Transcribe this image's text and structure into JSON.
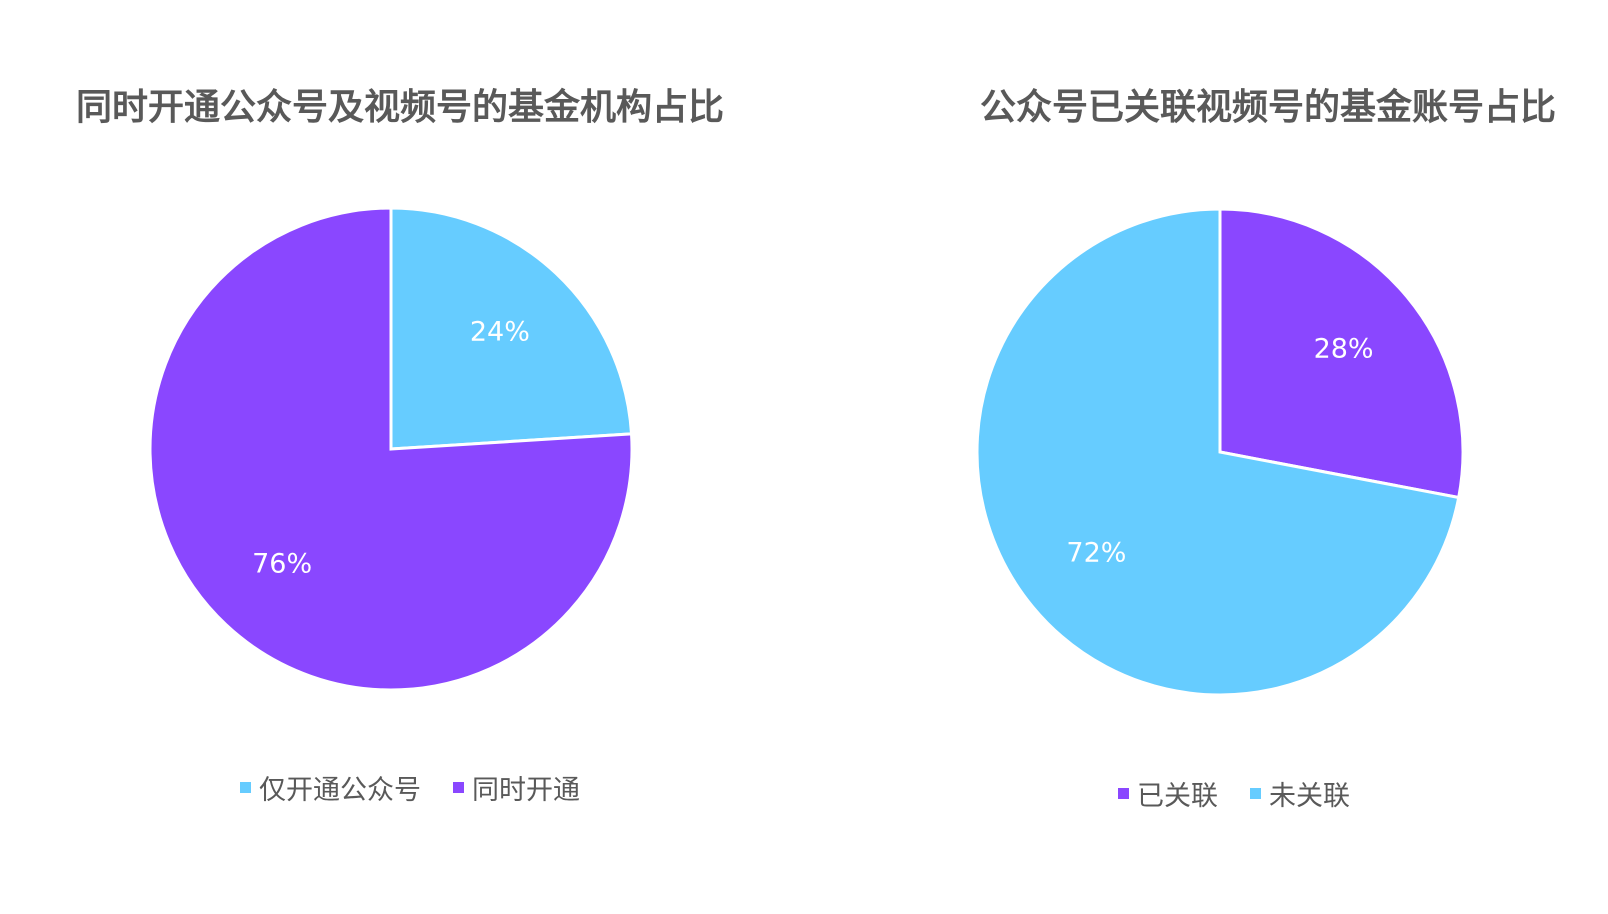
{
  "colors": {
    "light_blue": "#66CCFF",
    "purple": "#8A47FF",
    "title_text": "#595959",
    "legend_text": "#595959"
  },
  "chart_data": [
    {
      "type": "pie",
      "title": "同时开通公众号及视频号的基金机构占比",
      "categories": [
        "仅开通公众号",
        "同时开通"
      ],
      "values": [
        24,
        76
      ],
      "data_labels": [
        "24%",
        "76%"
      ],
      "colors": [
        "#66CCFF",
        "#8A47FF"
      ],
      "legend": [
        "仅开通公众号",
        "同时开通"
      ],
      "legend_position": "bottom"
    },
    {
      "type": "pie",
      "title": "公众号已关联视频号的基金账号占比",
      "categories": [
        "已关联",
        "未关联"
      ],
      "values": [
        28,
        72
      ],
      "data_labels": [
        "28%",
        "72%"
      ],
      "colors": [
        "#8A47FF",
        "#66CCFF"
      ],
      "legend": [
        "已关联",
        "未关联"
      ],
      "legend_position": "bottom"
    }
  ]
}
